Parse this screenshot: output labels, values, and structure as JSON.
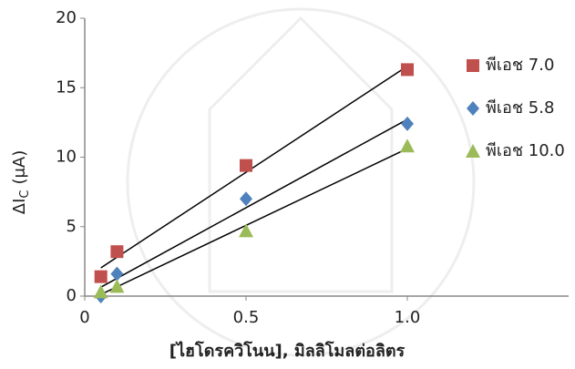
{
  "chart_data": {
    "type": "scatter",
    "x_label": "[ไฮโดรควิโนน], มิลลิโมลต่อลิตร",
    "y_label_parts": [
      "ΔI",
      "C",
      "(μA)"
    ],
    "xlim": [
      0,
      1.5
    ],
    "xticks": [
      0,
      0.5,
      {
        "value": 1,
        "label": "1.0"
      }
    ],
    "ylim": [
      0,
      20
    ],
    "yticks": [
      0,
      5,
      10,
      15,
      20
    ],
    "trendline": true,
    "legend": "right",
    "series": [
      {
        "name": "พีเอช 7.0",
        "color": "#c0504d",
        "marker": "square",
        "x": [
          0.05,
          0.1,
          0.5,
          1.0
        ],
        "values": [
          1.4,
          3.2,
          9.4,
          16.3
        ]
      },
      {
        "name": "พีเอช 5.8",
        "color": "#4f81bd",
        "marker": "diamond",
        "x": [
          0.05,
          0.1,
          0.5,
          1.0
        ],
        "values": [
          0,
          1.6,
          7.0,
          12.4
        ]
      },
      {
        "name": "พีเอช 10.0",
        "color": "#9bbb59",
        "marker": "triangle",
        "x": [
          0.05,
          0.1,
          0.5,
          1.0
        ],
        "values": [
          0.3,
          0.7,
          4.7,
          10.8
        ]
      }
    ]
  }
}
